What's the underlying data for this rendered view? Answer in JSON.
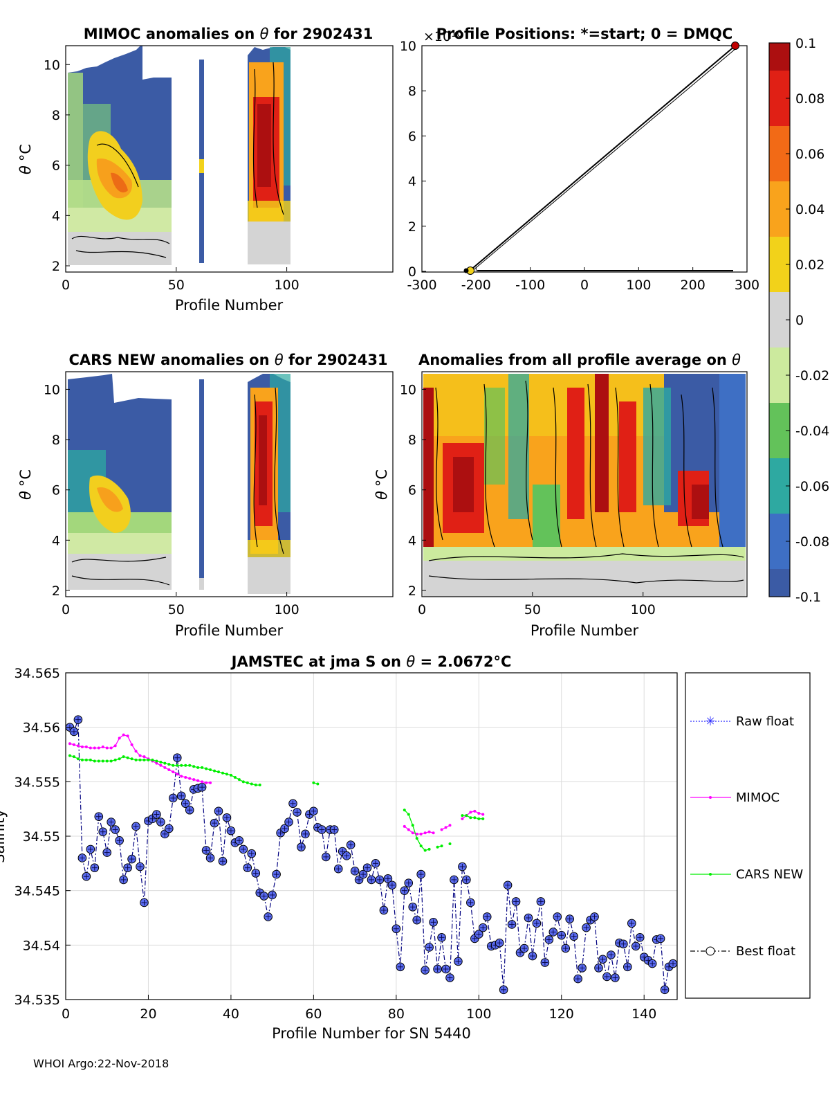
{
  "colors": {
    "blue": "#3b5ba5",
    "axis": "#000000",
    "grid": "#dcdcdc",
    "mimoc": "#ff00ff",
    "cars": "#00ee00",
    "best": "#000080",
    "marker": "#5a6cf0"
  },
  "panel_mimoc": {
    "title_prefix": "MIMOC anomalies on ",
    "title_sym": "θ",
    "title_suffix": "  for 2902431",
    "xlabel": "Profile Number",
    "ylabel_sym": "θ",
    "ylabel_unit": "°C",
    "xticks": [
      "0",
      "50",
      "100"
    ],
    "yticks": [
      "2",
      "4",
      "6",
      "8",
      "10"
    ]
  },
  "panel_positions": {
    "title": "Profile Positions: *=start; 0 = DMQC",
    "exponent": "×10",
    "xticks": [
      "-300",
      "-200",
      "-100",
      "0",
      "100",
      "200",
      "300"
    ],
    "yticks": [
      "0",
      "2",
      "4",
      "6",
      "8",
      "10"
    ]
  },
  "panel_cars": {
    "title_prefix": "CARS NEW anomalies on ",
    "title_sym": "θ",
    "title_suffix": " for 2902431",
    "xlabel": "Profile Number",
    "ylabel_sym": "θ",
    "ylabel_unit": "°C",
    "xticks": [
      "0",
      "50",
      "100"
    ],
    "yticks": [
      "2",
      "4",
      "6",
      "8",
      "10"
    ]
  },
  "panel_allavg": {
    "title_prefix": "Anomalies from all profile average on ",
    "title_sym": "θ",
    "xlabel": "Profile Number",
    "ylabel_sym": "θ",
    "ylabel_unit": "°C",
    "xticks": [
      "0",
      "50",
      "100"
    ],
    "yticks": [
      "2",
      "4",
      "6",
      "8",
      "10"
    ]
  },
  "colorbar": {
    "ticks": [
      "0.1",
      "0.08",
      "0.06",
      "0.04",
      "0.02",
      "0",
      "-0.02",
      "-0.04",
      "-0.06",
      "-0.08",
      "-0.1"
    ],
    "stops": [
      "#ac0f10",
      "#e02015",
      "#f26a16",
      "#f9a31c",
      "#f2d21a",
      "#d4d4d4",
      "#ccea9e",
      "#63c25a",
      "#2ea9a1",
      "#3e6fc4",
      "#3b5ba5"
    ]
  },
  "chart_data": {
    "type": "line",
    "title_prefix": "JAMSTEC at jma S on ",
    "title_sym": "θ",
    "title_suffix": " = 2.0672",
    "title_unit": "°C",
    "xlabel": "Profile Number for SN 5440",
    "ylabel": "Salinity",
    "xlim": [
      0,
      148
    ],
    "ylim": [
      34.535,
      34.565
    ],
    "xticks": [
      0,
      20,
      40,
      60,
      80,
      100,
      120,
      140
    ],
    "yticks": [
      "34.535",
      "34.54",
      "34.545",
      "34.55",
      "34.555",
      "34.56",
      "34.565"
    ],
    "legend": [
      "Raw float",
      "MIMOC",
      "CARS NEW",
      "Best float"
    ],
    "series": [
      {
        "name": "Best float",
        "x": [
          1,
          2,
          3,
          4,
          5,
          6,
          7,
          8,
          9,
          10,
          11,
          12,
          13,
          14,
          15,
          16,
          17,
          18,
          19,
          20,
          21,
          22,
          23,
          24,
          25,
          26,
          27,
          28,
          29,
          30,
          31,
          32,
          33,
          34,
          35,
          36,
          37,
          38,
          39,
          40,
          41,
          42,
          43,
          44,
          45,
          46,
          47,
          48,
          49,
          50,
          51,
          52,
          53,
          54,
          55,
          56,
          57,
          58,
          59,
          60,
          61,
          62,
          63,
          64,
          65,
          66,
          67,
          68,
          69,
          70,
          71,
          72,
          73,
          74,
          75,
          76,
          77,
          78,
          79,
          80,
          81,
          82,
          83,
          84,
          85,
          86,
          87,
          88,
          89,
          90,
          91,
          92,
          93,
          94,
          95,
          96,
          97,
          98,
          99,
          100,
          101,
          102,
          103,
          104,
          105,
          106,
          107,
          108,
          109,
          110,
          111,
          112,
          113,
          114,
          115,
          116,
          117,
          118,
          119,
          120,
          121,
          122,
          123,
          124,
          125,
          126,
          127,
          128,
          129,
          130,
          131,
          132,
          133,
          134,
          135,
          136,
          137,
          138,
          139,
          140,
          141,
          142,
          143,
          144,
          145,
          146,
          147
        ],
        "values": [
          34.56,
          34.5596,
          34.5607,
          34.548,
          34.5463,
          34.5488,
          34.5471,
          34.5518,
          34.5504,
          34.5485,
          34.5513,
          34.5506,
          34.5496,
          34.546,
          34.5471,
          34.5479,
          34.5509,
          34.5472,
          34.5439,
          34.5514,
          34.5516,
          34.552,
          34.5513,
          34.5502,
          34.5507,
          34.5535,
          34.5572,
          34.5537,
          34.553,
          34.5524,
          34.5543,
          34.5544,
          34.5545,
          34.5487,
          34.548,
          34.5512,
          34.5523,
          34.5477,
          34.5517,
          34.5505,
          34.5494,
          34.5496,
          34.5488,
          34.5471,
          34.5484,
          34.5466,
          34.5448,
          34.5445,
          34.5426,
          34.5446,
          34.5465,
          34.5503,
          34.5507,
          34.5513,
          34.553,
          34.5522,
          34.549,
          34.5502,
          34.552,
          34.5523,
          34.5508,
          34.5506,
          34.5481,
          34.5506,
          34.5506,
          34.547,
          34.5486,
          34.5482,
          34.5492,
          34.5468,
          34.546,
          34.5465,
          34.5471,
          34.546,
          34.5475,
          34.546,
          34.5432,
          34.5461,
          34.5455,
          34.5415,
          34.538,
          34.545,
          34.5457,
          34.5435,
          34.5423,
          34.5465,
          34.5377,
          34.5398,
          34.5421,
          34.5378,
          34.5407,
          34.5378,
          34.537,
          34.546,
          34.5385,
          34.5472,
          34.546,
          34.5439,
          34.5406,
          34.541,
          34.5416,
          34.5426,
          34.5399,
          34.54,
          34.5402,
          34.5359,
          34.5455,
          34.5419,
          34.544,
          34.5393,
          34.5397,
          34.5425,
          34.539,
          34.542,
          34.544,
          34.5384,
          34.5405,
          34.5412,
          34.5426,
          34.5409,
          34.5397,
          34.5424,
          34.5408,
          34.5369,
          34.5379,
          34.5416,
          34.5423,
          34.5426,
          34.5379,
          34.5387,
          34.5371,
          34.5391,
          34.537,
          34.5402,
          34.5401,
          34.538,
          34.542,
          34.5399,
          34.5407,
          34.5389,
          34.5386,
          34.5383,
          34.5405,
          34.5406,
          34.5359,
          34.538,
          34.5383
        ]
      },
      {
        "name": "MIMOC",
        "x": [
          1,
          2,
          3,
          4,
          5,
          6,
          7,
          8,
          9,
          10,
          11,
          12,
          13,
          14,
          15,
          16,
          17,
          18,
          19,
          20,
          21,
          22,
          23,
          24,
          25,
          26,
          27,
          28,
          29,
          30,
          31,
          32,
          33,
          34,
          35,
          null,
          82,
          83,
          84,
          85,
          86,
          87,
          88,
          89,
          null,
          91,
          92,
          93,
          null,
          96,
          97,
          98,
          99,
          100,
          101
        ],
        "values": [
          34.5585,
          34.5584,
          34.5583,
          34.5582,
          34.5582,
          34.5581,
          34.5581,
          34.5581,
          34.5582,
          34.5581,
          34.5581,
          34.5583,
          34.559,
          34.5593,
          34.5592,
          34.5584,
          34.5578,
          34.5574,
          34.5573,
          34.5571,
          34.5569,
          34.5567,
          34.5565,
          34.5563,
          34.5561,
          34.5559,
          34.5557,
          34.5555,
          34.5554,
          34.5553,
          34.5552,
          34.5551,
          34.555,
          34.5549,
          34.5549,
          null,
          34.5509,
          34.5506,
          34.5503,
          34.5502,
          34.5502,
          34.5503,
          34.5504,
          34.5503,
          null,
          34.5506,
          34.5508,
          34.551,
          null,
          34.5516,
          34.5519,
          34.5522,
          34.5523,
          34.5521,
          34.552
        ]
      },
      {
        "name": "CARS NEW",
        "x": [
          1,
          2,
          3,
          4,
          5,
          6,
          7,
          8,
          9,
          10,
          11,
          12,
          13,
          14,
          15,
          16,
          17,
          18,
          19,
          20,
          21,
          22,
          23,
          24,
          25,
          26,
          27,
          28,
          29,
          30,
          31,
          32,
          33,
          34,
          35,
          36,
          37,
          38,
          39,
          40,
          41,
          42,
          43,
          44,
          45,
          46,
          47,
          null,
          60,
          61,
          null,
          82,
          83,
          84,
          85,
          86,
          87,
          88,
          null,
          90,
          91,
          null,
          93,
          null,
          96,
          97,
          98,
          99,
          100,
          101
        ],
        "values": [
          34.5574,
          34.5573,
          34.5571,
          34.557,
          34.557,
          34.557,
          34.5569,
          34.5569,
          34.5569,
          34.5569,
          34.5569,
          34.557,
          34.5571,
          34.5573,
          34.5572,
          34.5571,
          34.557,
          34.557,
          34.557,
          34.557,
          34.557,
          34.5569,
          34.5568,
          34.5567,
          34.5566,
          34.5565,
          34.5565,
          34.5565,
          34.5565,
          34.5565,
          34.5564,
          34.5563,
          34.5563,
          34.5562,
          34.5561,
          34.556,
          34.5559,
          34.5558,
          34.5557,
          34.5556,
          34.5554,
          34.5552,
          34.555,
          34.5549,
          34.5548,
          34.5547,
          34.5547,
          null,
          34.5549,
          34.5548,
          null,
          34.5524,
          34.552,
          34.551,
          34.5498,
          34.5491,
          34.5487,
          34.5488,
          null,
          34.549,
          34.5491,
          null,
          34.5493,
          null,
          34.5519,
          34.5519,
          34.5517,
          34.5517,
          34.5516,
          34.5516
        ]
      }
    ]
  },
  "footer": "WHOI Argo:22-Nov-2018"
}
